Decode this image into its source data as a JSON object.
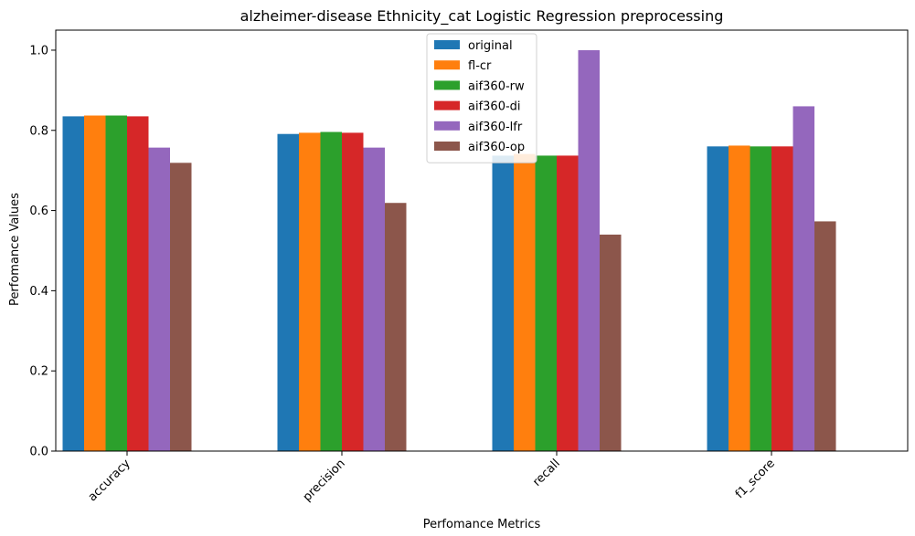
{
  "chart_data": {
    "type": "bar",
    "title": "alzheimer-disease Ethnicity_cat Logistic Regression preprocessing",
    "xlabel": "Perfomance Metrics",
    "ylabel": "Perfomance Values",
    "categories": [
      "accuracy",
      "precision",
      "recall",
      "f1_score"
    ],
    "ylim": [
      0,
      1.05
    ],
    "yticks": [
      "0.0",
      "0.2",
      "0.4",
      "0.6",
      "0.8",
      "1.0"
    ],
    "grid": false,
    "legend_position": "top-center",
    "series": [
      {
        "name": "original",
        "color": "#1f77b4",
        "values": [
          0.835,
          0.791,
          0.737,
          0.76
        ]
      },
      {
        "name": "fl-cr",
        "color": "#ff7f0e",
        "values": [
          0.837,
          0.794,
          0.741,
          0.762
        ]
      },
      {
        "name": "aif360-rw",
        "color": "#2ca02c",
        "values": [
          0.837,
          0.796,
          0.737,
          0.76
        ]
      },
      {
        "name": "aif360-di",
        "color": "#d62728",
        "values": [
          0.835,
          0.794,
          0.737,
          0.76
        ]
      },
      {
        "name": "aif360-lfr",
        "color": "#9467bd",
        "values": [
          0.757,
          0.757,
          1.0,
          0.86
        ]
      },
      {
        "name": "aif360-op",
        "color": "#8c564b",
        "values": [
          0.719,
          0.619,
          0.54,
          0.573
        ]
      }
    ]
  }
}
